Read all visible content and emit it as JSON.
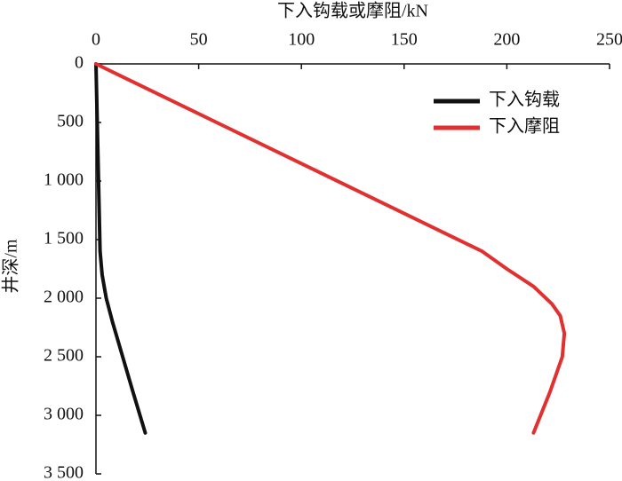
{
  "chart_data": {
    "type": "line",
    "x_label": "下入钩载或摩阻/kN",
    "y_label": "井深/m",
    "xlim": [
      0,
      250
    ],
    "xticks": [
      0,
      50,
      100,
      150,
      200,
      250
    ],
    "ylim": [
      0,
      3500
    ],
    "y_inverted": true,
    "yticks": [
      0,
      500,
      {
        "value": 1000,
        "label": "1 000"
      },
      {
        "value": 1500,
        "label": "1 500"
      },
      {
        "value": 2000,
        "label": "2 000"
      },
      {
        "value": 2500,
        "label": "2 500"
      },
      {
        "value": 3000,
        "label": "3 000"
      },
      {
        "value": 3500,
        "label": "3 500"
      }
    ],
    "legend": "upper right",
    "series": [
      {
        "name": "下入钩载",
        "color": "#111111",
        "x": [
          0,
          1,
          2,
          3,
          5,
          8,
          13,
          18,
          24
        ],
        "y": [
          0,
          800,
          1600,
          1800,
          2000,
          2200,
          2500,
          2800,
          3150
        ]
      },
      {
        "name": "下入摩阻",
        "color": "#e03030",
        "x": [
          0,
          188,
          200,
          213,
          222,
          226,
          228,
          227,
          221,
          213
        ],
        "y": [
          0,
          1600,
          1750,
          1900,
          2050,
          2150,
          2300,
          2500,
          2800,
          3150
        ]
      }
    ]
  }
}
